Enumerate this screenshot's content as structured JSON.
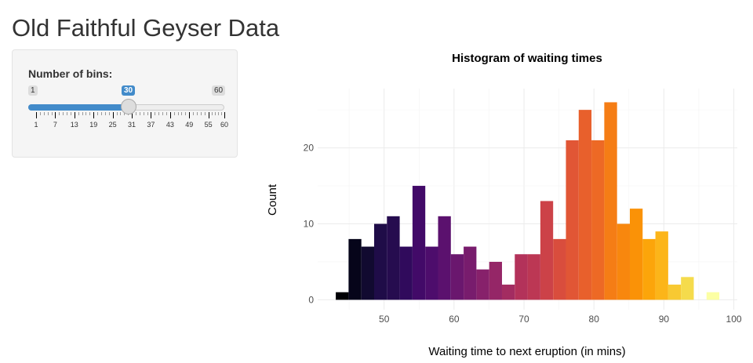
{
  "page_title": "Old Faithful Geyser Data",
  "slider": {
    "label": "Number of bins:",
    "min": 1,
    "max": 60,
    "value": 30,
    "min_label": "1",
    "max_label": "60",
    "value_label": "30",
    "tick_labels": [
      "1",
      "7",
      "13",
      "19",
      "25",
      "31",
      "37",
      "43",
      "49",
      "55",
      "60"
    ],
    "accent": "#428bca"
  },
  "chart_data": {
    "type": "bar",
    "title": "Histogram of waiting times",
    "xlabel": "Waiting time to next eruption (in mins)",
    "ylabel": "Count",
    "bin_start": 43.09,
    "bin_width": 1.828,
    "values": [
      1,
      8,
      7,
      10,
      11,
      7,
      15,
      7,
      11,
      6,
      7,
      4,
      5,
      2,
      6,
      6,
      13,
      8,
      21,
      25,
      21,
      26,
      10,
      12,
      8,
      9,
      2,
      3,
      0,
      1
    ],
    "xlim": [
      40.5,
      100.5
    ],
    "ylim": [
      -1.3,
      27.8
    ],
    "xticks": [
      "50",
      "60",
      "70",
      "80",
      "90",
      "100"
    ],
    "yticks": [
      "0",
      "10",
      "20"
    ],
    "grid": true,
    "palette": "inferno",
    "colors": [
      "#000004",
      "#06051a",
      "#110a30",
      "#1f0c48",
      "#260c4f",
      "#300a5c",
      "#420a68",
      "#4d0d6c",
      "#5b116e",
      "#6a176e",
      "#781c6d",
      "#87216b",
      "#952667",
      "#a32c61",
      "#b3325a",
      "#bc3754",
      "#cc4248",
      "#d94d3d",
      "#e15635",
      "#e8602c",
      "#ed6925",
      "#f57d15",
      "#f8870e",
      "#fa9207",
      "#fca50a",
      "#fcb519",
      "#f8c932",
      "#f5db4c",
      "#f2e462",
      "#fcffa4"
    ]
  }
}
